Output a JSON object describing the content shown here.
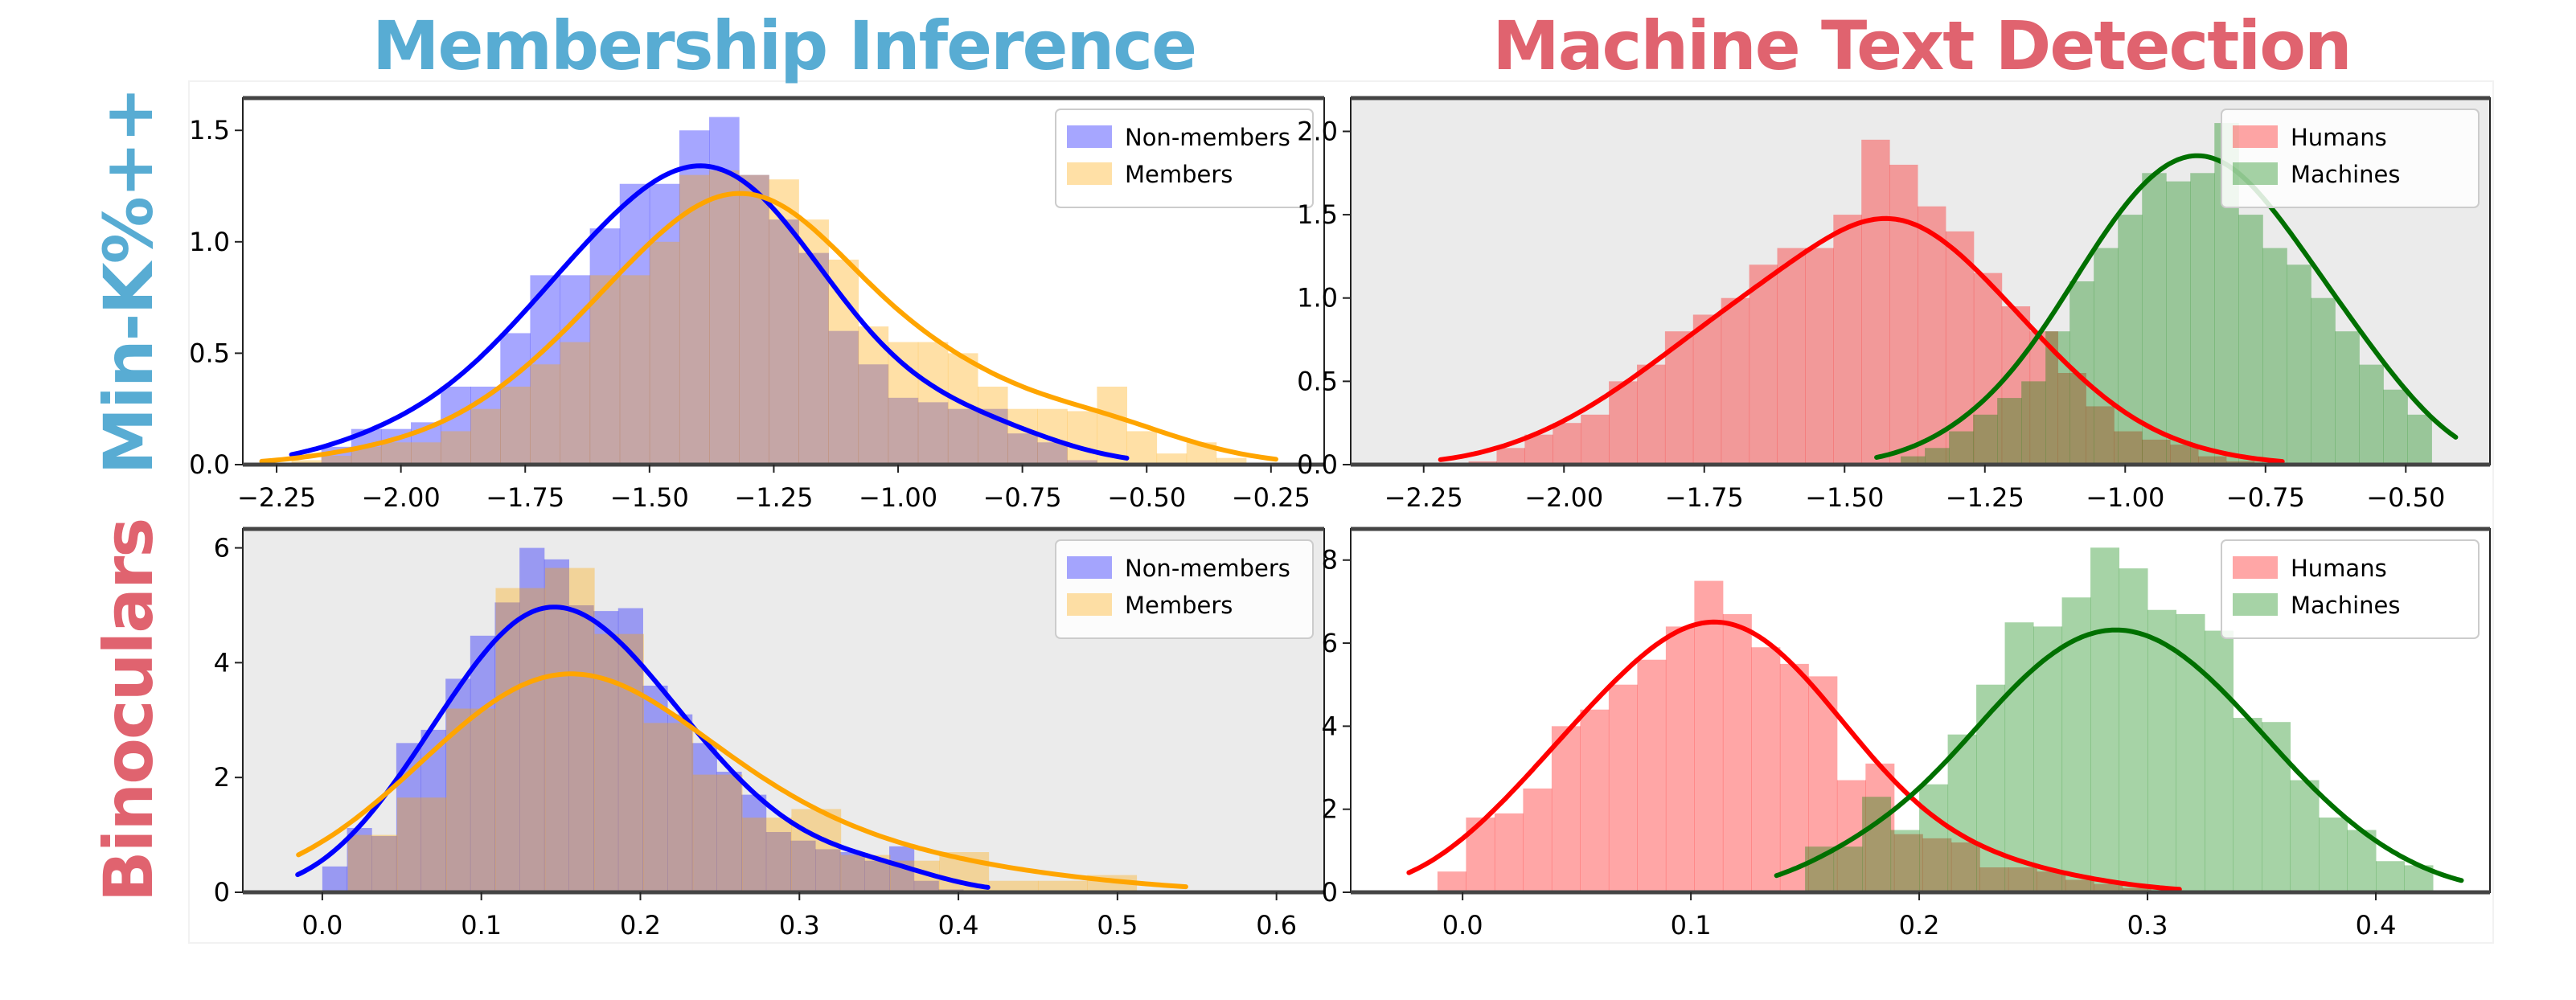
{
  "titles": {
    "col_left": "Membership Inference",
    "col_right": "Machine Text Detection",
    "row_top": "Min-K%++",
    "row_bottom": "Binoculars"
  },
  "colors": {
    "title_blue": "#58acd3",
    "title_red": "#e0636f"
  },
  "chart_data": [
    {
      "id": "tl",
      "type": "histogram+kde",
      "title": "Membership Inference / Min-K%++",
      "background": "#ffffff",
      "xlim": [
        -2.318,
        -0.143
      ],
      "ylim": [
        0,
        1.645
      ],
      "xticks": [
        -2.25,
        -2.0,
        -1.75,
        -1.5,
        -1.25,
        -1.0,
        -0.75,
        -0.5,
        -0.25
      ],
      "xtick_labels": [
        "−2.25",
        "−2.00",
        "−1.75",
        "−1.50",
        "−1.25",
        "−1.00",
        "−0.75",
        "−0.50",
        "−0.25"
      ],
      "yticks": [
        0,
        0.5,
        1.0,
        1.5
      ],
      "ytick_labels": [
        "0.0",
        "0.5",
        "1.0",
        "1.5"
      ],
      "legend": "top-right",
      "series": [
        {
          "name": "Non-members",
          "hist_color": "#0000ff",
          "line_color": "#0000ff",
          "bin_start": -2.16,
          "bin_width": 0.06,
          "values": [
            0.08,
            0.16,
            0.16,
            0.19,
            0.35,
            0.35,
            0.59,
            0.85,
            0.85,
            1.06,
            1.26,
            1.26,
            1.5,
            1.56,
            1.3,
            1.1,
            0.95,
            0.6,
            0.45,
            0.3,
            0.28,
            0.25,
            0.25,
            0.14,
            0.1,
            0.02
          ]
        },
        {
          "name": "Members",
          "hist_color": "#ffa500",
          "line_color": "#ffa500",
          "bin_start": -2.22,
          "bin_width": 0.06,
          "values": [
            0.02,
            0.04,
            0.08,
            0.1,
            0.1,
            0.15,
            0.25,
            0.35,
            0.45,
            0.55,
            0.85,
            0.85,
            1.0,
            1.3,
            1.32,
            1.3,
            1.28,
            1.1,
            0.92,
            0.62,
            0.55,
            0.55,
            0.5,
            0.35,
            0.25,
            0.25,
            0.24,
            0.35,
            0.15,
            0.05,
            0.1,
            0.03
          ]
        }
      ]
    },
    {
      "id": "tr",
      "type": "histogram+kde",
      "title": "Machine Text Detection / Min-K%++",
      "background": "#ebebeb",
      "xlim": [
        -2.38,
        -0.35
      ],
      "ylim": [
        0,
        2.2
      ],
      "xticks": [
        -2.25,
        -2.0,
        -1.75,
        -1.5,
        -1.25,
        -1.0,
        -0.75,
        -0.5
      ],
      "xtick_labels": [
        "−2.25",
        "−2.00",
        "−1.75",
        "−1.50",
        "−1.25",
        "−1.00",
        "−0.75",
        "−0.50"
      ],
      "yticks": [
        0,
        0.5,
        1.0,
        1.5,
        2.0
      ],
      "ytick_labels": [
        "0.0",
        "0.5",
        "1.0",
        "1.5",
        "2.0"
      ],
      "legend": "top-right",
      "series": [
        {
          "name": "Humans",
          "hist_color": "#ff0000",
          "line_color": "#ff0000",
          "bin_start": -2.17,
          "bin_width": 0.05,
          "values": [
            0.02,
            0.1,
            0.18,
            0.25,
            0.3,
            0.5,
            0.6,
            0.8,
            0.9,
            1.0,
            1.2,
            1.3,
            1.3,
            1.5,
            1.95,
            1.8,
            1.55,
            1.4,
            1.15,
            0.95,
            0.8,
            0.55,
            0.35,
            0.2,
            0.15,
            0.12,
            0.05,
            0.02
          ]
        },
        {
          "name": "Machines",
          "hist_color": "#008000",
          "line_color": "#007000",
          "bin_start": -1.4,
          "bin_width": 0.043,
          "values": [
            0.05,
            0.1,
            0.2,
            0.3,
            0.4,
            0.5,
            0.8,
            1.1,
            1.3,
            1.5,
            1.75,
            1.7,
            1.75,
            2.05,
            1.5,
            1.3,
            1.2,
            1.0,
            0.8,
            0.6,
            0.45,
            0.3
          ]
        }
      ]
    },
    {
      "id": "bl",
      "type": "histogram+kde",
      "title": "Membership Inference / Binoculars",
      "background": "#ebebeb",
      "xlim": [
        -0.05,
        0.63
      ],
      "ylim": [
        0,
        6.33
      ],
      "xticks": [
        0,
        0.1,
        0.2,
        0.3,
        0.4,
        0.5,
        0.6
      ],
      "xtick_labels": [
        "0.0",
        "0.1",
        "0.2",
        "0.3",
        "0.4",
        "0.5",
        "0.6"
      ],
      "yticks": [
        0,
        2,
        4,
        6
      ],
      "ytick_labels": [
        "0",
        "2",
        "4",
        "6"
      ],
      "legend": "top-right",
      "series": [
        {
          "name": "Non-members",
          "hist_color": "#0000ff",
          "line_color": "#0000ff",
          "bin_start": 0.0,
          "bin_width": 0.0155,
          "values": [
            0.45,
            1.12,
            0.98,
            2.6,
            2.83,
            3.72,
            4.47,
            5.05,
            6.0,
            5.8,
            5.0,
            4.9,
            4.95,
            3.6,
            3.1,
            2.6,
            2.1,
            1.7,
            1.05,
            0.9,
            0.75,
            0.7,
            0.55,
            0.8,
            0.2,
            0.05
          ]
        },
        {
          "name": "Members",
          "hist_color": "#ffa500",
          "line_color": "#ffa500",
          "bin_start": 0.016,
          "bin_width": 0.031,
          "values": [
            1.0,
            1.65,
            3.2,
            5.3,
            5.65,
            4.5,
            2.95,
            2.05,
            1.3,
            1.45,
            0.65,
            0.55,
            0.7,
            0.2,
            0.2,
            0.3
          ]
        }
      ]
    },
    {
      "id": "br",
      "type": "histogram+kde",
      "title": "Machine Text Detection / Binoculars",
      "background": "#ffffff",
      "xlim": [
        -0.049,
        0.45
      ],
      "ylim": [
        0,
        8.75
      ],
      "xticks": [
        0,
        0.1,
        0.2,
        0.3,
        0.4
      ],
      "xtick_labels": [
        "0.0",
        "0.1",
        "0.2",
        "0.3",
        "0.4"
      ],
      "yticks": [
        0,
        2,
        4,
        6,
        8
      ],
      "ytick_labels": [
        "0",
        "2",
        "4",
        "6",
        "8"
      ],
      "legend": "top-right",
      "series": [
        {
          "name": "Humans",
          "hist_color": "#ff0000",
          "line_color": "#ff0000",
          "bin_start": -0.011,
          "bin_width": 0.0125,
          "values": [
            0.5,
            1.8,
            1.9,
            2.5,
            4.0,
            4.4,
            5.0,
            5.6,
            6.4,
            7.5,
            6.7,
            5.9,
            5.5,
            5.2,
            2.7,
            3.1,
            1.4,
            1.3,
            1.2,
            0.6,
            0.6,
            0.5,
            0.3,
            0.2,
            0.1
          ]
        },
        {
          "name": "Machines",
          "hist_color": "#008000",
          "line_color": "#007000",
          "bin_start": 0.15,
          "bin_width": 0.0125,
          "values": [
            1.1,
            1.1,
            2.3,
            1.5,
            2.6,
            3.8,
            5.0,
            6.5,
            6.4,
            7.1,
            8.3,
            7.8,
            6.8,
            6.7,
            6.3,
            4.2,
            4.1,
            2.7,
            1.8,
            1.5,
            0.75,
            0.65
          ]
        }
      ]
    }
  ]
}
